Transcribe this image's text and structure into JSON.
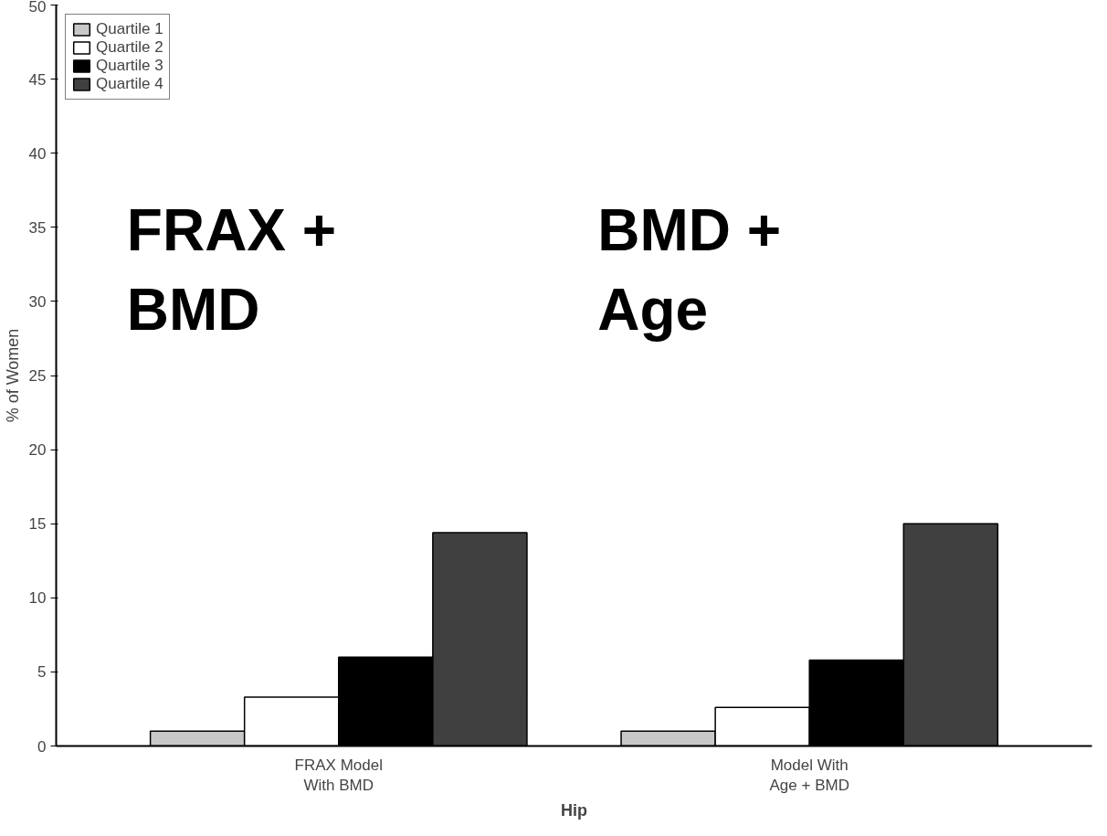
{
  "chart_data": {
    "type": "bar",
    "ylabel": "% of Women",
    "xlabel": "Hip",
    "categories": [
      "FRAX Model\nWith BMD",
      "Model With\nAge + BMD"
    ],
    "series": [
      {
        "name": "Quartile 1",
        "color": "#c8c8c8",
        "values": [
          1,
          1
        ]
      },
      {
        "name": "Quartile 2",
        "color": "#ffffff",
        "values": [
          3.3,
          2.6
        ]
      },
      {
        "name": "Quartile 3",
        "color": "#000000",
        "values": [
          6,
          5.8
        ]
      },
      {
        "name": "Quartile 4",
        "color": "#404040",
        "values": [
          14.4,
          15
        ]
      }
    ],
    "ylim": [
      0,
      50
    ],
    "yticks": [
      0,
      5,
      10,
      15,
      20,
      25,
      30,
      35,
      40,
      45,
      50
    ],
    "annotations": [
      "FRAX +\nBMD",
      "BMD +\nAge"
    ],
    "legend": "top left",
    "grid": false
  }
}
